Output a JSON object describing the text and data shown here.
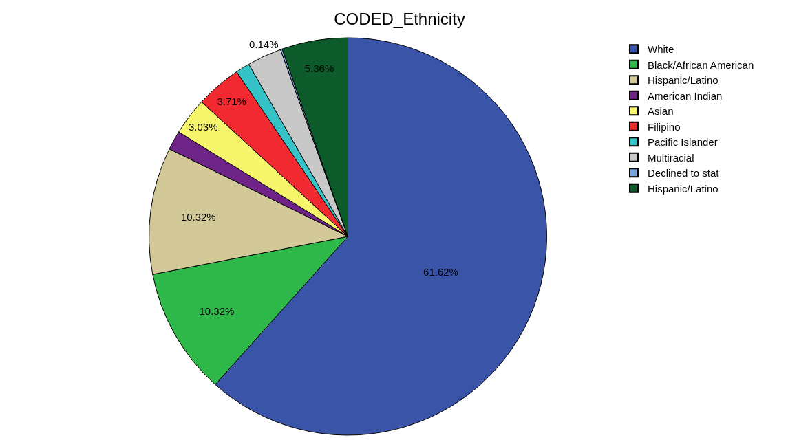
{
  "chart_data": {
    "type": "pie",
    "title": "CODED_Ethnicity",
    "categories": [
      "White",
      "Black/African American",
      "Hispanic/Latino",
      "American Indian",
      "Asian",
      "Filipino",
      "Pacific Islander",
      "Multiracial",
      "Declined to stat",
      "Hispanic/Latino"
    ],
    "values": [
      61.62,
      10.32,
      10.32,
      1.55,
      3.03,
      3.71,
      1.15,
      2.8,
      0.14,
      5.36
    ],
    "value_labels": [
      "61.62%",
      "10.32%",
      "10.32%",
      null,
      "3.03%",
      "3.71%",
      null,
      null,
      "0.14%",
      "5.36%"
    ],
    "colors": [
      "#3a54a8",
      "#2fb84a",
      "#d3c898",
      "#6e2487",
      "#f7f56c",
      "#f02a30",
      "#35c3c8",
      "#c8c8c8",
      "#7ba6dc",
      "#0d5a2a"
    ],
    "legend": "top right"
  }
}
